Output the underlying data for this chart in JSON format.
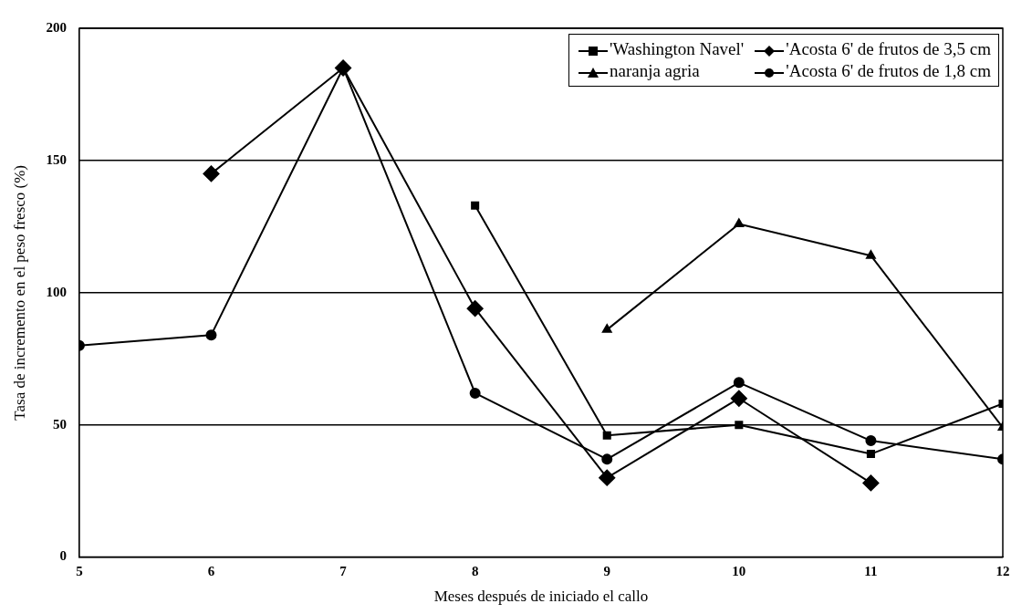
{
  "chart_data": {
    "type": "line",
    "xlabel": "Meses después de iniciado el callo",
    "ylabel": "Tasa de incremento en el peso fresco (%)",
    "xlim": [
      5,
      12
    ],
    "xticks": [
      5,
      6,
      7,
      8,
      9,
      10,
      11,
      12
    ],
    "ylim": [
      0,
      200
    ],
    "yticks": [
      0,
      50,
      100,
      150,
      200
    ],
    "grid": "y",
    "legend": "top right",
    "line_style": "solid",
    "series": [
      {
        "name": "'Washington Navel'",
        "color": "#000000",
        "marker": "square",
        "x": [
          8,
          9,
          10,
          11,
          12
        ],
        "values": [
          133,
          46,
          50,
          39,
          58
        ]
      },
      {
        "name": "'Acosta 6' de frutos de 3,5 cm",
        "color": "#000000",
        "marker": "diamond",
        "x": [
          6,
          7,
          8,
          9,
          10,
          11
        ],
        "values": [
          145,
          185,
          94,
          30,
          60,
          28
        ]
      },
      {
        "name": "naranja agria",
        "color": "#000000",
        "marker": "triangle",
        "x": [
          9,
          10,
          11,
          12
        ],
        "values": [
          86,
          126,
          114,
          49
        ]
      },
      {
        "name": "'Acosta 6' de frutos de 1,8 cm",
        "color": "#000000",
        "marker": "circle",
        "x": [
          5,
          6,
          7,
          8,
          9,
          10,
          11,
          12
        ],
        "values": [
          80,
          84,
          185,
          62,
          37,
          66,
          44,
          37
        ]
      }
    ]
  }
}
